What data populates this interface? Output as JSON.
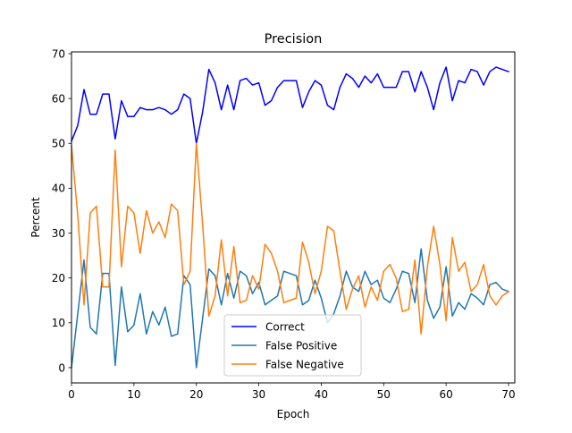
{
  "chart_data": {
    "type": "line",
    "title": "Precision",
    "xlabel": "Epoch",
    "ylabel": "Percent",
    "xlim": [
      0,
      71
    ],
    "ylim": [
      -3.4,
      70.4
    ],
    "xticks": [
      0,
      10,
      20,
      30,
      40,
      50,
      60,
      70
    ],
    "yticks": [
      0,
      10,
      20,
      30,
      40,
      50,
      60,
      70
    ],
    "grid": false,
    "legend_position": "lower-center",
    "x": [
      0,
      1,
      2,
      3,
      4,
      5,
      6,
      7,
      8,
      9,
      10,
      11,
      12,
      13,
      14,
      15,
      16,
      17,
      18,
      19,
      20,
      21,
      22,
      23,
      24,
      25,
      26,
      27,
      28,
      29,
      30,
      31,
      32,
      33,
      34,
      35,
      36,
      37,
      38,
      39,
      40,
      41,
      42,
      43,
      44,
      45,
      46,
      47,
      48,
      49,
      50,
      51,
      52,
      53,
      54,
      55,
      56,
      57,
      58,
      59,
      60,
      61,
      62,
      63,
      64,
      65,
      66,
      67,
      68,
      69,
      70
    ],
    "series": [
      {
        "name": "Correct",
        "color": "#0000ff",
        "values": [
          50.5,
          54,
          62,
          56.5,
          56.5,
          61,
          61,
          51,
          59.5,
          56,
          56,
          58,
          57.5,
          57.5,
          58,
          57.5,
          56.5,
          57.5,
          61,
          60,
          50,
          57,
          66.5,
          63.5,
          57.5,
          63,
          57.5,
          64,
          64.5,
          63,
          63.5,
          58.5,
          59.5,
          62.5,
          64,
          64,
          64,
          58,
          61.5,
          64,
          63,
          58.5,
          57.5,
          62.5,
          65.5,
          64.5,
          62.5,
          65,
          63.5,
          65.5,
          62.5,
          62.5,
          62.5,
          66,
          66,
          61.5,
          66,
          62.5,
          57.5,
          63.5,
          67,
          59.5,
          64,
          63.5,
          66.5,
          66,
          63,
          66,
          67,
          66.5,
          66
        ]
      },
      {
        "name": "False Positive",
        "color": "#1f77b4",
        "values": [
          0,
          12,
          24,
          9,
          7.5,
          21,
          21,
          0.5,
          18,
          8,
          9.5,
          16.5,
          7.5,
          12.5,
          9.5,
          13.5,
          7,
          7.5,
          20.5,
          18.5,
          0,
          11,
          22,
          20.5,
          14,
          21,
          15.5,
          21.5,
          20.5,
          16.5,
          19,
          14,
          15,
          16,
          21.5,
          21,
          20.5,
          14,
          15,
          19.5,
          15.5,
          10,
          12,
          16,
          21.5,
          18,
          17,
          21.5,
          18.5,
          19.5,
          15.5,
          14.5,
          17.5,
          21.5,
          21,
          14.5,
          26.5,
          15,
          11,
          13.5,
          22.5,
          11.5,
          14.5,
          13,
          16.5,
          15.5,
          14,
          18.5,
          19,
          17.5,
          17
        ]
      },
      {
        "name": "False Negative",
        "color": "#ff7f0e",
        "values": [
          49.5,
          34,
          14,
          34.5,
          36,
          18,
          18,
          48.5,
          22.5,
          36,
          34.5,
          25.5,
          35,
          30,
          32.5,
          29,
          36.5,
          35,
          18.5,
          21.5,
          50,
          32,
          11.5,
          16,
          28.5,
          16,
          27,
          14.5,
          15,
          20.5,
          17.5,
          27.5,
          25.5,
          21.5,
          14.5,
          15,
          15.5,
          28,
          23.5,
          16.5,
          21.5,
          31.5,
          30.5,
          21.5,
          13,
          17.5,
          20.5,
          13.5,
          18,
          15,
          21.5,
          23,
          20,
          12.5,
          13,
          24,
          7.5,
          22.5,
          31.5,
          23,
          10.5,
          29,
          21.5,
          23.5,
          17,
          18.5,
          23,
          16,
          14,
          16,
          17
        ]
      }
    ]
  }
}
